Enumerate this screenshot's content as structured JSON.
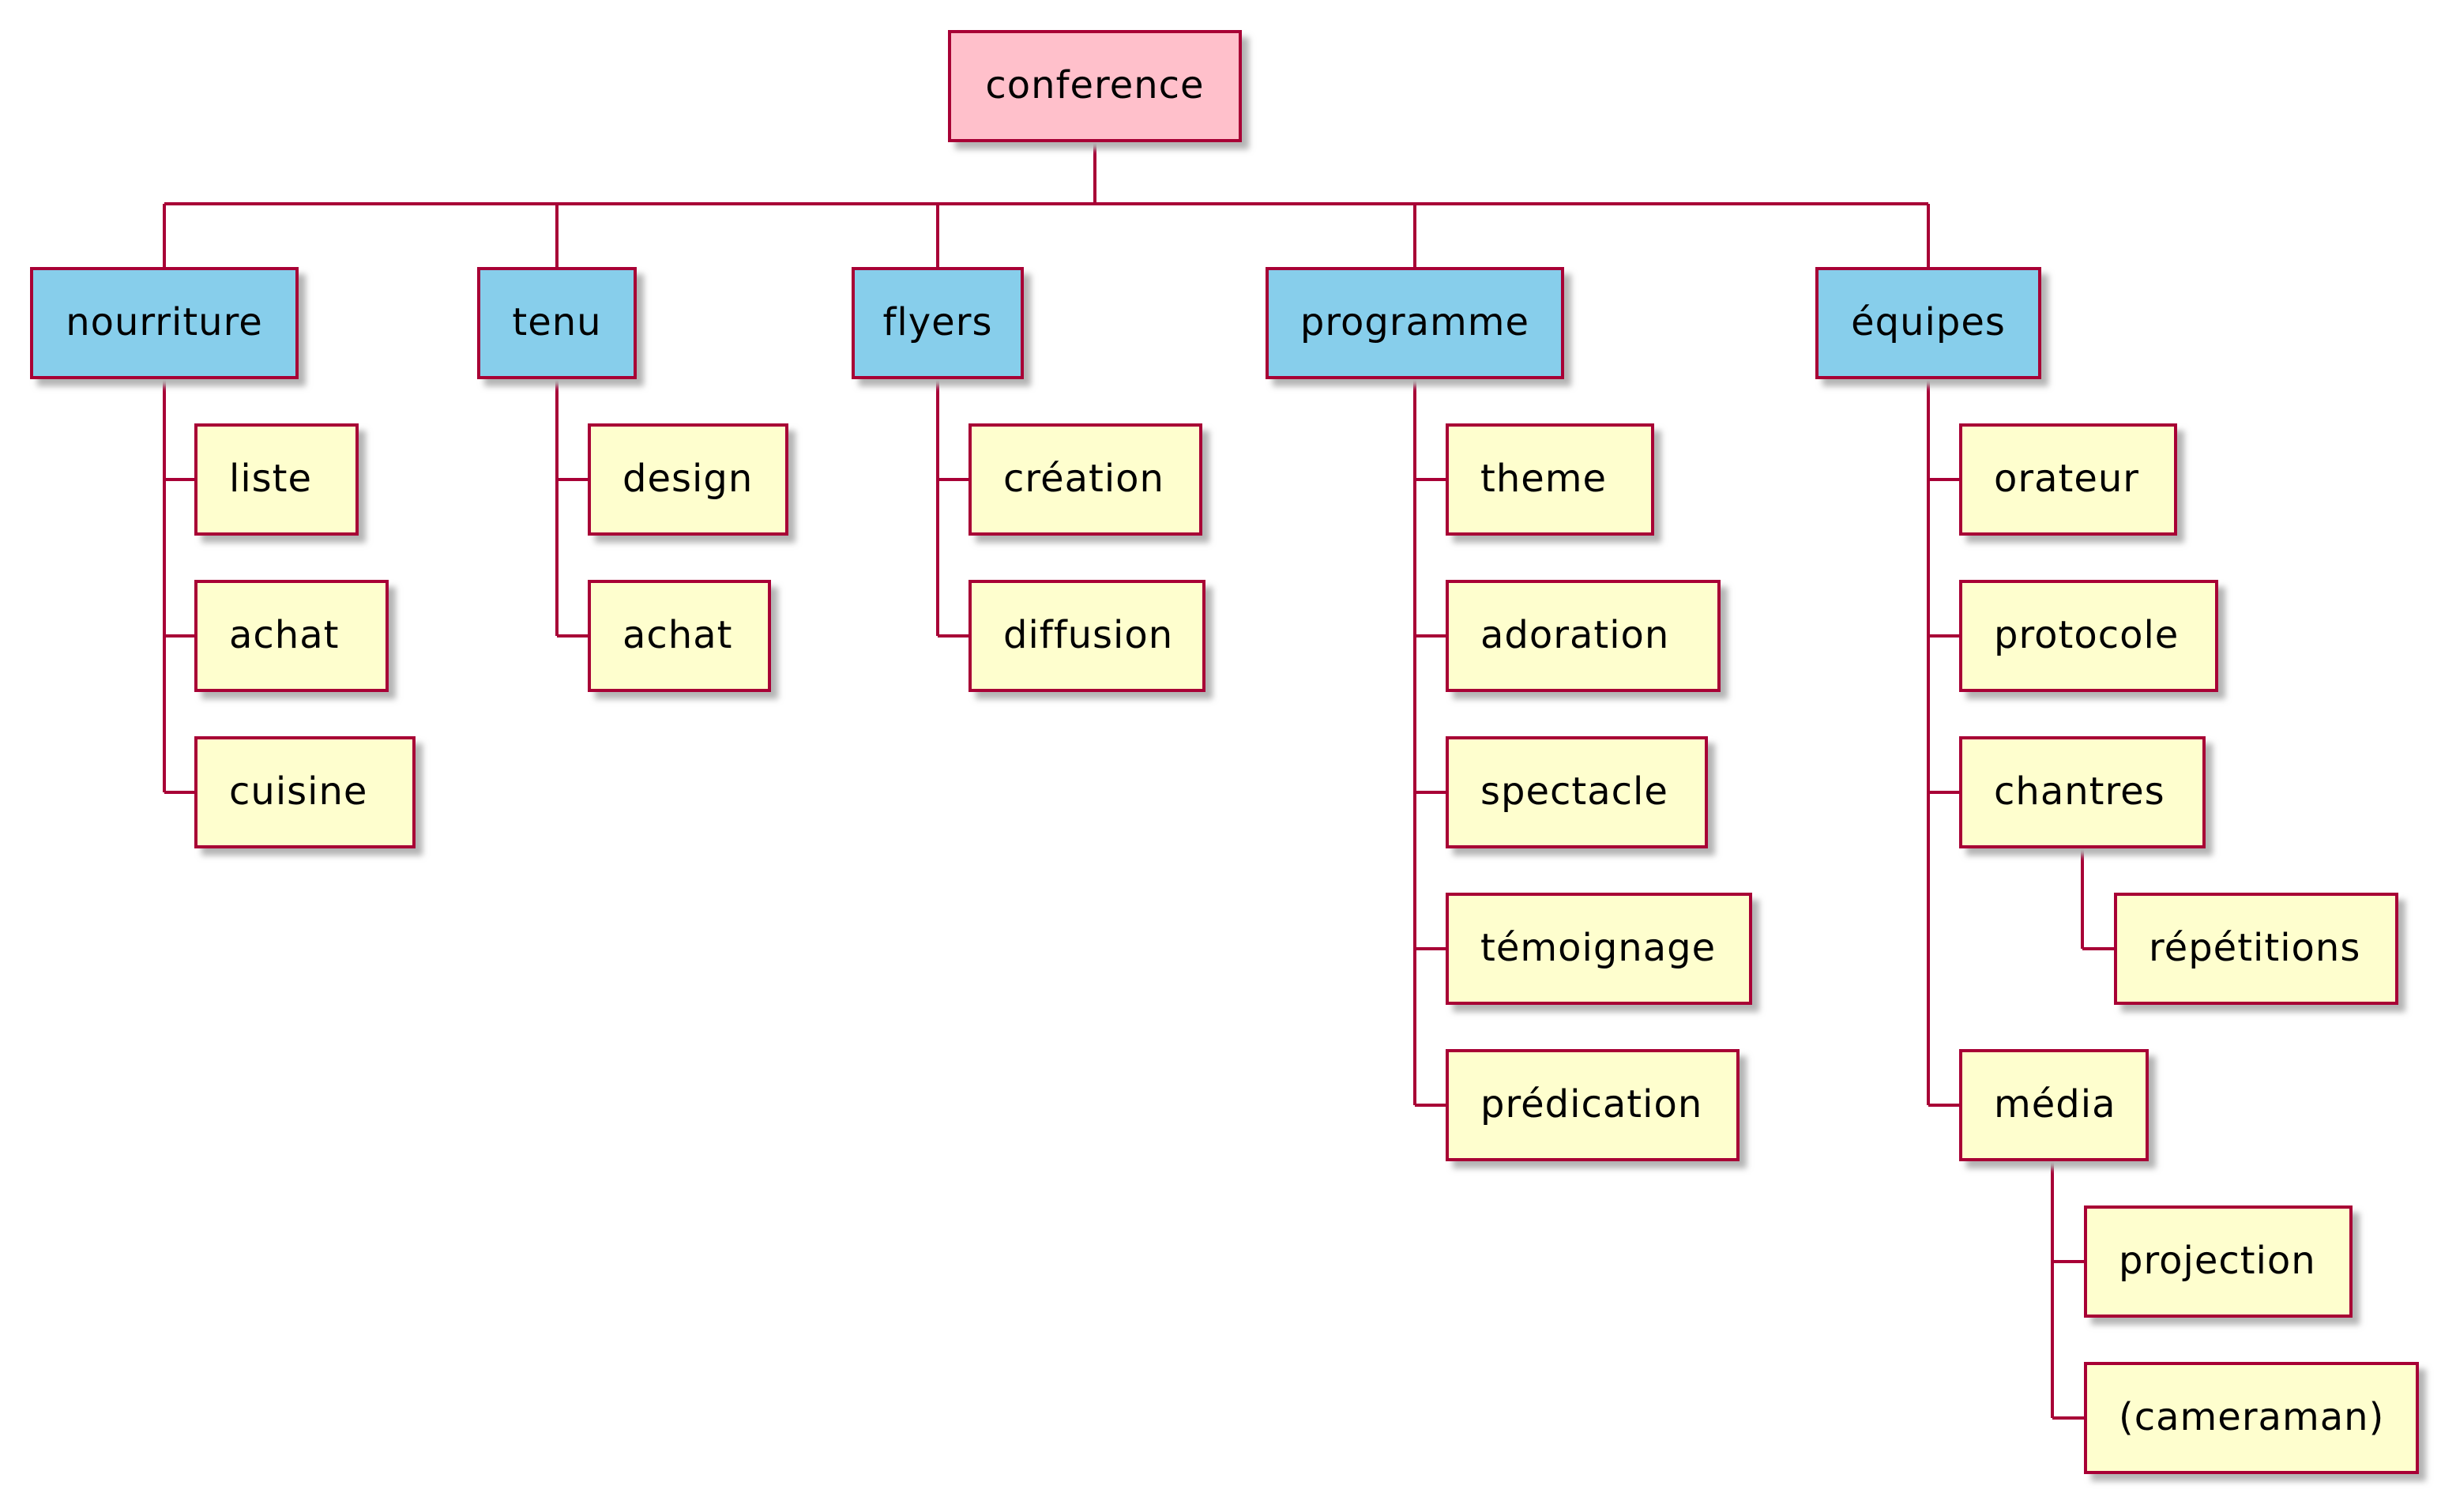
{
  "colors": {
    "border": "#A80036",
    "root_fill": "#FFC0CB",
    "level1_fill": "#87CEEB",
    "leaf_fill": "#FEFECE",
    "shadow": "#B4B4B4"
  },
  "root": {
    "label": "conference"
  },
  "branches": [
    {
      "label": "nourriture",
      "children": [
        {
          "label": "liste"
        },
        {
          "label": "achat"
        },
        {
          "label": "cuisine"
        }
      ]
    },
    {
      "label": "tenu",
      "children": [
        {
          "label": "design"
        },
        {
          "label": "achat"
        }
      ]
    },
    {
      "label": "flyers",
      "children": [
        {
          "label": "création"
        },
        {
          "label": "diffusion"
        }
      ]
    },
    {
      "label": "programme",
      "children": [
        {
          "label": "theme"
        },
        {
          "label": "adoration"
        },
        {
          "label": "spectacle"
        },
        {
          "label": "témoignage"
        },
        {
          "label": "prédication"
        }
      ]
    },
    {
      "label": "équipes",
      "children": [
        {
          "label": "orateur"
        },
        {
          "label": "protocole"
        },
        {
          "label": "chantres",
          "children": [
            {
              "label": "répétitions"
            }
          ]
        },
        {
          "label": "média",
          "children": [
            {
              "label": "projection"
            },
            {
              "label": "(cameraman)"
            }
          ]
        }
      ]
    }
  ]
}
